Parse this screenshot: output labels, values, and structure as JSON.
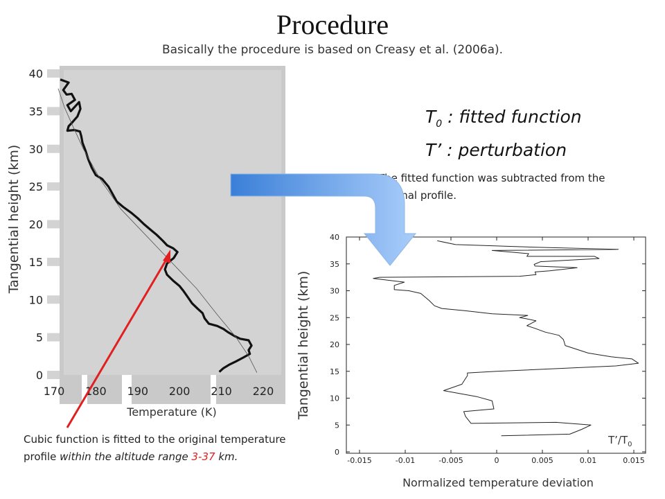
{
  "title": "Procedure",
  "subtitle": "Basically the procedure is based on Creasy et al. (2006a).",
  "legend": {
    "t0_symbol": "T",
    "t0_sub": "0",
    "t0_text": " : fitted function",
    "tp_text": "T’ : perturbation"
  },
  "note_subtracted": "The fitted function was subtracted from the original profile.",
  "note_cubic": {
    "part1": "Cubic function is fitted to the original temperature profile ",
    "part2_italic": "within the altitude range ",
    "range_red": "3-37",
    "part3_italic": " km."
  },
  "colors": {
    "panel_bg": "#d3d3d3",
    "profile": "#111111",
    "fit": "#555555",
    "red_arrow": "#e02020",
    "blue_arrow_start": "#3a7fd8",
    "blue_arrow_end": "#a9cdfa"
  },
  "chart_data": [
    {
      "type": "line",
      "title": "",
      "xlabel": "Temperature (K)",
      "ylabel": "Tangential height (km)",
      "xlim": [
        170,
        220
      ],
      "ylim": [
        0,
        40
      ],
      "xticks": [
        170,
        180,
        190,
        200,
        210,
        220
      ],
      "yticks": [
        0,
        5,
        10,
        15,
        20,
        25,
        30,
        35,
        40
      ],
      "series": [
        {
          "points": [
            [
              171.5,
              39.2
            ],
            [
              173.5,
              38.8
            ],
            [
              172.2,
              37.8
            ],
            [
              173.0,
              37.2
            ],
            [
              174.2,
              37.3
            ],
            [
              175.0,
              36.5
            ],
            [
              173.2,
              35.8
            ],
            [
              174.0,
              35.0
            ],
            [
              176.0,
              36.2
            ],
            [
              176.3,
              35.3
            ],
            [
              175.6,
              34.3
            ],
            [
              174.5,
              33.6
            ],
            [
              173.5,
              33.0
            ],
            [
              173.2,
              32.4
            ],
            [
              174.8,
              32.5
            ],
            [
              176.2,
              32.3
            ],
            [
              176.5,
              31.7
            ],
            [
              176.8,
              30.8
            ],
            [
              177.5,
              29.8
            ],
            [
              178.2,
              28.6
            ],
            [
              179.0,
              27.5
            ],
            [
              180.0,
              26.5
            ],
            [
              181.5,
              26.0
            ],
            [
              183.0,
              25.0
            ],
            [
              184.0,
              24.0
            ],
            [
              185.0,
              23.0
            ],
            [
              186.5,
              22.3
            ],
            [
              188.5,
              21.5
            ],
            [
              190.0,
              20.8
            ],
            [
              191.5,
              20.0
            ],
            [
              193.0,
              19.3
            ],
            [
              194.5,
              18.6
            ],
            [
              196.0,
              17.8
            ],
            [
              197.0,
              17.2
            ],
            [
              198.5,
              16.8
            ],
            [
              199.5,
              16.3
            ],
            [
              198.6,
              15.5
            ],
            [
              197.0,
              14.8
            ],
            [
              196.5,
              14.0
            ],
            [
              197.0,
              13.3
            ],
            [
              198.5,
              12.5
            ],
            [
              200.0,
              11.8
            ],
            [
              201.0,
              11.1
            ],
            [
              202.0,
              10.3
            ],
            [
              203.0,
              9.5
            ],
            [
              204.3,
              8.8
            ],
            [
              205.5,
              8.2
            ],
            [
              206.0,
              7.5
            ],
            [
              207.0,
              6.8
            ],
            [
              209.0,
              6.5
            ],
            [
              210.5,
              6.1
            ],
            [
              211.5,
              5.7
            ],
            [
              213.0,
              5.2
            ],
            [
              214.5,
              4.8
            ],
            [
              216.5,
              4.6
            ],
            [
              217.2,
              3.9
            ],
            [
              216.5,
              3.3
            ],
            [
              216.8,
              2.8
            ],
            [
              215.2,
              2.3
            ],
            [
              213.5,
              1.8
            ],
            [
              212.0,
              1.4
            ],
            [
              210.5,
              0.9
            ],
            [
              209.5,
              0.4
            ]
          ]
        },
        {
          "points": [
            [
              171.0,
              38.0
            ],
            [
              172.5,
              35.5
            ],
            [
              174.5,
              33.0
            ],
            [
              177.0,
              30.0
            ],
            [
              181.0,
              26.0
            ],
            [
              186.0,
              22.0
            ],
            [
              192.0,
              18.5
            ],
            [
              198.0,
              15.0
            ],
            [
              204.0,
              11.5
            ],
            [
              209.0,
              8.0
            ],
            [
              213.5,
              5.0
            ],
            [
              216.5,
              2.5
            ],
            [
              218.5,
              0.3
            ]
          ]
        }
      ]
    },
    {
      "type": "line",
      "title": "",
      "xlabel": "Normalized temperature deviation",
      "ylabel": "Tangential height (km)",
      "annotation": "T’/T",
      "annotation_sub": "0",
      "xlim": [
        -0.018,
        0.018
      ],
      "ylim": [
        0,
        40
      ],
      "xticks": [
        -0.015,
        -0.01,
        -0.005,
        0,
        0.005,
        0.01,
        0.015
      ],
      "xtick_labels": [
        "-0.015",
        "-0.01",
        "-0.005",
        "0",
        "0.005",
        "0.01",
        "0.015"
      ],
      "yticks": [
        0,
        5,
        10,
        15,
        20,
        25,
        30,
        35,
        40
      ],
      "series": [
        {
          "points": [
            [
              0.0005,
              3.0
            ],
            [
              0.008,
              3.3
            ],
            [
              0.0093,
              4.2
            ],
            [
              0.0103,
              5.0
            ],
            [
              0.0065,
              5.5
            ],
            [
              -0.0028,
              5.3
            ],
            [
              -0.0034,
              6.6
            ],
            [
              -0.0036,
              7.5
            ],
            [
              -0.0003,
              8.0
            ],
            [
              -0.0005,
              9.5
            ],
            [
              -0.0022,
              10.3
            ],
            [
              -0.0058,
              11.4
            ],
            [
              -0.0048,
              12.0
            ],
            [
              -0.0038,
              12.6
            ],
            [
              -0.0035,
              13.4
            ],
            [
              -0.0032,
              14.2
            ],
            [
              -0.0032,
              14.7
            ],
            [
              0.0,
              15.0
            ],
            [
              0.013,
              16.0
            ],
            [
              0.0155,
              16.5
            ],
            [
              0.0148,
              17.3
            ],
            [
              0.0125,
              17.7
            ],
            [
              0.01,
              18.4
            ],
            [
              0.0075,
              19.8
            ],
            [
              0.0073,
              20.9
            ],
            [
              0.0068,
              21.7
            ],
            [
              0.0053,
              22.3
            ],
            [
              0.0042,
              23.0
            ],
            [
              0.0033,
              23.5
            ],
            [
              0.0043,
              24.4
            ],
            [
              0.0032,
              24.8
            ],
            [
              0.0025,
              25.0
            ],
            [
              0.0034,
              25.4
            ],
            [
              -0.0005,
              25.7
            ],
            [
              -0.0035,
              26.3
            ],
            [
              -0.006,
              26.7
            ],
            [
              -0.0068,
              27.2
            ],
            [
              -0.0074,
              28.2
            ],
            [
              -0.0083,
              29.5
            ],
            [
              -0.0096,
              30.0
            ],
            [
              -0.0112,
              30.2
            ],
            [
              -0.0112,
              31.0
            ],
            [
              -0.0101,
              31.6
            ],
            [
              -0.0135,
              32.3
            ],
            [
              -0.0128,
              32.5
            ],
            [
              0.0025,
              32.7
            ],
            [
              0.0043,
              33.0
            ],
            [
              0.0042,
              33.5
            ],
            [
              0.0058,
              33.7
            ],
            [
              0.0088,
              34.3
            ],
            [
              0.0042,
              34.6
            ],
            [
              0.0041,
              34.9
            ],
            [
              0.0048,
              35.4
            ],
            [
              0.0112,
              36.0
            ],
            [
              0.0107,
              36.4
            ],
            [
              0.0033,
              36.4
            ],
            [
              0.0035,
              36.9
            ],
            [
              -0.0005,
              37.5
            ],
            [
              0.0133,
              37.7
            ],
            [
              0.0043,
              38.1
            ],
            [
              -0.0045,
              38.6
            ],
            [
              -0.0065,
              39.3
            ]
          ]
        }
      ]
    }
  ]
}
